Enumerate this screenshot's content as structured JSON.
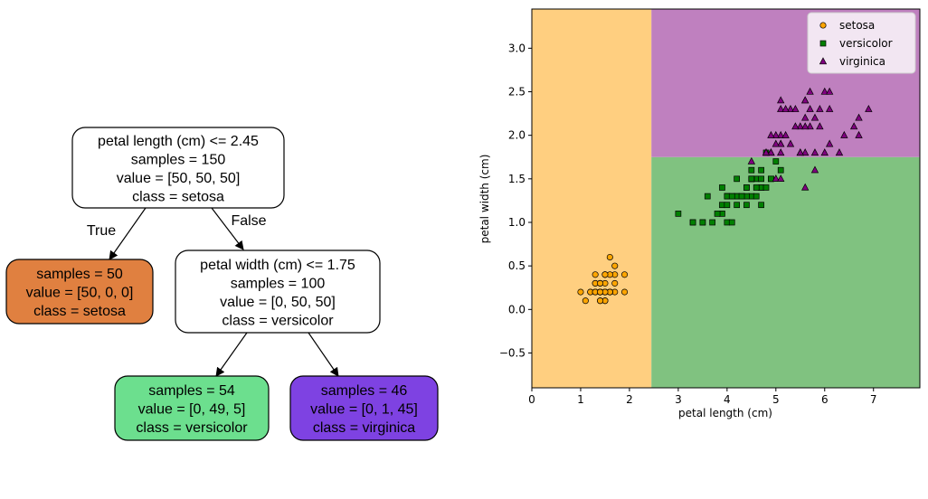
{
  "tree": {
    "nodes": [
      {
        "id": "root",
        "lines": [
          "petal length (cm) <= 2.45",
          "samples = 150",
          "value = [50, 50, 50]",
          "class = setosa"
        ],
        "fill": "#ffffff"
      },
      {
        "id": "left",
        "lines": [
          "samples = 50",
          "value = [50, 0, 0]",
          "class = setosa"
        ],
        "fill": "#e08040"
      },
      {
        "id": "right",
        "lines": [
          "petal width (cm) <= 1.75",
          "samples = 100",
          "value = [0, 50, 50]",
          "class = versicolor"
        ],
        "fill": "#ffffff"
      },
      {
        "id": "rl",
        "lines": [
          "samples = 54",
          "value = [0, 49, 5]",
          "class = versicolor"
        ],
        "fill": "#6cdf8e"
      },
      {
        "id": "rr",
        "lines": [
          "samples = 46",
          "value = [0, 1, 45]",
          "class = virginica"
        ],
        "fill": "#7e42e2"
      }
    ],
    "edge_labels": {
      "true_label": "True",
      "false_label": "False"
    }
  },
  "chart_data": {
    "type": "scatter",
    "xlabel": "petal length (cm)",
    "ylabel": "petal width (cm)",
    "xlim": [
      0,
      7.95
    ],
    "ylim": [
      -0.9,
      3.45
    ],
    "xticks": [
      0,
      1,
      2,
      3,
      4,
      5,
      6,
      7
    ],
    "yticks": [
      -0.5,
      0.0,
      0.5,
      1.0,
      1.5,
      2.0,
      2.5,
      3.0
    ],
    "ytick_labels": [
      "−0.5",
      "0.0",
      "0.5",
      "1.0",
      "1.5",
      "2.0",
      "2.5",
      "3.0"
    ],
    "grid": false,
    "legend_position": "top-right",
    "decision_regions": [
      {
        "class": "setosa",
        "x": [
          0,
          2.45
        ],
        "y": [
          -0.9,
          3.45
        ],
        "color": "#ffcf80"
      },
      {
        "class": "versicolor",
        "x": [
          2.45,
          7.95
        ],
        "y": [
          -0.9,
          1.75
        ],
        "color": "#80c280"
      },
      {
        "class": "virginica",
        "x": [
          2.45,
          7.95
        ],
        "y": [
          1.75,
          3.45
        ],
        "color": "#bf80bf"
      }
    ],
    "series": [
      {
        "name": "setosa",
        "marker": "circle",
        "color": "#ffa500",
        "points": [
          [
            1.4,
            0.2
          ],
          [
            1.4,
            0.2
          ],
          [
            1.3,
            0.2
          ],
          [
            1.5,
            0.2
          ],
          [
            1.4,
            0.2
          ],
          [
            1.7,
            0.4
          ],
          [
            1.4,
            0.3
          ],
          [
            1.5,
            0.2
          ],
          [
            1.4,
            0.2
          ],
          [
            1.5,
            0.1
          ],
          [
            1.5,
            0.2
          ],
          [
            1.6,
            0.2
          ],
          [
            1.4,
            0.1
          ],
          [
            1.1,
            0.1
          ],
          [
            1.2,
            0.2
          ],
          [
            1.5,
            0.4
          ],
          [
            1.3,
            0.4
          ],
          [
            1.4,
            0.3
          ],
          [
            1.7,
            0.3
          ],
          [
            1.5,
            0.3
          ],
          [
            1.7,
            0.2
          ],
          [
            1.5,
            0.4
          ],
          [
            1.0,
            0.2
          ],
          [
            1.7,
            0.5
          ],
          [
            1.9,
            0.2
          ],
          [
            1.6,
            0.2
          ],
          [
            1.6,
            0.4
          ],
          [
            1.5,
            0.2
          ],
          [
            1.4,
            0.2
          ],
          [
            1.6,
            0.2
          ],
          [
            1.6,
            0.2
          ],
          [
            1.5,
            0.4
          ],
          [
            1.5,
            0.1
          ],
          [
            1.4,
            0.2
          ],
          [
            1.5,
            0.2
          ],
          [
            1.2,
            0.2
          ],
          [
            1.3,
            0.2
          ],
          [
            1.4,
            0.1
          ],
          [
            1.3,
            0.2
          ],
          [
            1.5,
            0.2
          ],
          [
            1.3,
            0.3
          ],
          [
            1.3,
            0.3
          ],
          [
            1.3,
            0.2
          ],
          [
            1.6,
            0.6
          ],
          [
            1.9,
            0.4
          ],
          [
            1.4,
            0.3
          ],
          [
            1.6,
            0.2
          ],
          [
            1.4,
            0.2
          ],
          [
            1.5,
            0.2
          ],
          [
            1.4,
            0.2
          ]
        ]
      },
      {
        "name": "versicolor",
        "marker": "square",
        "color": "#008000",
        "points": [
          [
            4.7,
            1.4
          ],
          [
            4.5,
            1.5
          ],
          [
            4.9,
            1.5
          ],
          [
            4.0,
            1.3
          ],
          [
            4.6,
            1.5
          ],
          [
            4.5,
            1.3
          ],
          [
            4.7,
            1.6
          ],
          [
            3.3,
            1.0
          ],
          [
            4.6,
            1.3
          ],
          [
            3.9,
            1.4
          ],
          [
            3.5,
            1.0
          ],
          [
            4.2,
            1.5
          ],
          [
            4.0,
            1.0
          ],
          [
            4.7,
            1.4
          ],
          [
            3.6,
            1.3
          ],
          [
            4.4,
            1.4
          ],
          [
            4.5,
            1.5
          ],
          [
            4.1,
            1.0
          ],
          [
            4.5,
            1.5
          ],
          [
            3.9,
            1.1
          ],
          [
            4.8,
            1.8
          ],
          [
            4.0,
            1.3
          ],
          [
            4.9,
            1.5
          ],
          [
            4.7,
            1.2
          ],
          [
            4.3,
            1.3
          ],
          [
            4.4,
            1.4
          ],
          [
            4.8,
            1.4
          ],
          [
            5.0,
            1.7
          ],
          [
            4.5,
            1.5
          ],
          [
            3.5,
            1.0
          ],
          [
            3.8,
            1.1
          ],
          [
            3.7,
            1.0
          ],
          [
            3.9,
            1.2
          ],
          [
            5.1,
            1.6
          ],
          [
            4.5,
            1.5
          ],
          [
            4.5,
            1.6
          ],
          [
            4.7,
            1.5
          ],
          [
            4.4,
            1.3
          ],
          [
            4.1,
            1.3
          ],
          [
            4.0,
            1.3
          ],
          [
            4.4,
            1.2
          ],
          [
            4.6,
            1.4
          ],
          [
            4.0,
            1.2
          ],
          [
            3.3,
            1.0
          ],
          [
            4.2,
            1.3
          ],
          [
            4.2,
            1.2
          ],
          [
            4.2,
            1.3
          ],
          [
            4.3,
            1.3
          ],
          [
            3.0,
            1.1
          ],
          [
            4.1,
            1.3
          ]
        ]
      },
      {
        "name": "virginica",
        "marker": "triangle",
        "color": "#800080",
        "points": [
          [
            6.0,
            2.5
          ],
          [
            5.1,
            1.9
          ],
          [
            5.9,
            2.1
          ],
          [
            5.6,
            1.8
          ],
          [
            5.8,
            2.2
          ],
          [
            6.6,
            2.1
          ],
          [
            4.5,
            1.7
          ],
          [
            6.3,
            1.8
          ],
          [
            5.8,
            1.8
          ],
          [
            6.1,
            2.5
          ],
          [
            5.1,
            2.0
          ],
          [
            5.3,
            1.9
          ],
          [
            5.5,
            2.1
          ],
          [
            5.0,
            2.0
          ],
          [
            5.1,
            2.4
          ],
          [
            5.3,
            2.3
          ],
          [
            5.5,
            1.8
          ],
          [
            6.7,
            2.2
          ],
          [
            6.9,
            2.3
          ],
          [
            5.0,
            1.5
          ],
          [
            5.7,
            2.3
          ],
          [
            4.9,
            2.0
          ],
          [
            6.7,
            2.0
          ],
          [
            4.9,
            1.8
          ],
          [
            5.7,
            2.1
          ],
          [
            6.0,
            1.8
          ],
          [
            4.8,
            1.8
          ],
          [
            4.9,
            1.8
          ],
          [
            5.6,
            2.1
          ],
          [
            5.8,
            1.6
          ],
          [
            6.1,
            1.9
          ],
          [
            6.4,
            2.0
          ],
          [
            5.6,
            2.2
          ],
          [
            5.1,
            1.5
          ],
          [
            5.6,
            1.4
          ],
          [
            6.1,
            2.3
          ],
          [
            5.6,
            2.4
          ],
          [
            5.5,
            1.8
          ],
          [
            4.8,
            1.8
          ],
          [
            5.4,
            2.1
          ],
          [
            5.6,
            2.4
          ],
          [
            5.1,
            2.3
          ],
          [
            5.1,
            1.9
          ],
          [
            5.9,
            2.3
          ],
          [
            5.7,
            2.5
          ],
          [
            5.2,
            2.3
          ],
          [
            5.0,
            1.9
          ],
          [
            5.2,
            2.0
          ],
          [
            5.4,
            2.3
          ],
          [
            5.1,
            1.8
          ]
        ]
      }
    ]
  }
}
